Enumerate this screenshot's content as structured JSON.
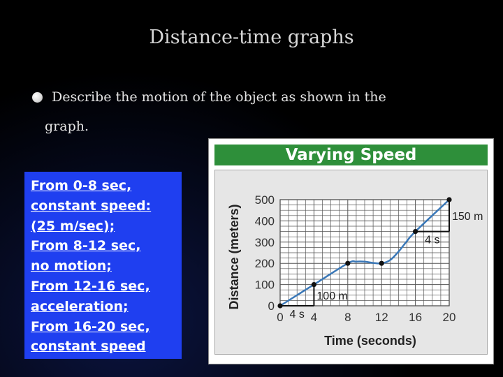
{
  "slide": {
    "title": "Distance-time graphs",
    "bullet_line1": "Describe the motion of the object as shown in the",
    "bullet_line2": "graph."
  },
  "answer_lines": [
    "From 0-8 sec,",
    "constant speed:",
    "(25 m/sec);",
    "From 8-12 sec,",
    "no motion;",
    "From 12-16 sec,",
    "acceleration;",
    "From 16-20 sec,",
    "constant speed"
  ],
  "colors": {
    "header_green": "#2e8f3a",
    "answer_box_blue": "#1f3ff0",
    "curve_blue": "#3a78b8",
    "panel_gray": "#e6e6e6"
  },
  "chart_data": {
    "type": "line",
    "title": "Varying Speed",
    "xlabel": "Time (seconds)",
    "ylabel": "Distance (meters)",
    "xlim": [
      0,
      20
    ],
    "ylim": [
      0,
      500
    ],
    "x_ticks": [
      0,
      4,
      8,
      12,
      16,
      20
    ],
    "y_ticks": [
      0,
      100,
      200,
      300,
      400,
      500
    ],
    "grid": true,
    "series": [
      {
        "points": [
          [
            0,
            0
          ],
          [
            4,
            100
          ],
          [
            8,
            200
          ],
          [
            12,
            200
          ],
          [
            16,
            350
          ],
          [
            20,
            500
          ]
        ],
        "curve": [
          [
            0,
            0
          ],
          [
            4,
            100
          ],
          [
            8,
            200
          ],
          [
            9,
            208
          ],
          [
            10,
            208
          ],
          [
            11,
            202
          ],
          [
            12,
            200
          ],
          [
            13,
            215
          ],
          [
            14,
            255
          ],
          [
            15,
            305
          ],
          [
            16,
            350
          ],
          [
            20,
            500
          ]
        ]
      }
    ],
    "annotations": [
      {
        "text": "4 s",
        "kind": "run",
        "from": [
          0,
          0
        ],
        "to": [
          4,
          0
        ]
      },
      {
        "text": "100 m",
        "kind": "rise",
        "from": [
          4,
          0
        ],
        "to": [
          4,
          100
        ]
      },
      {
        "text": "4 s",
        "kind": "run",
        "from": [
          16,
          350
        ],
        "to": [
          20,
          350
        ]
      },
      {
        "text": "150 m",
        "kind": "rise",
        "from": [
          20,
          350
        ],
        "to": [
          20,
          500
        ]
      }
    ]
  }
}
